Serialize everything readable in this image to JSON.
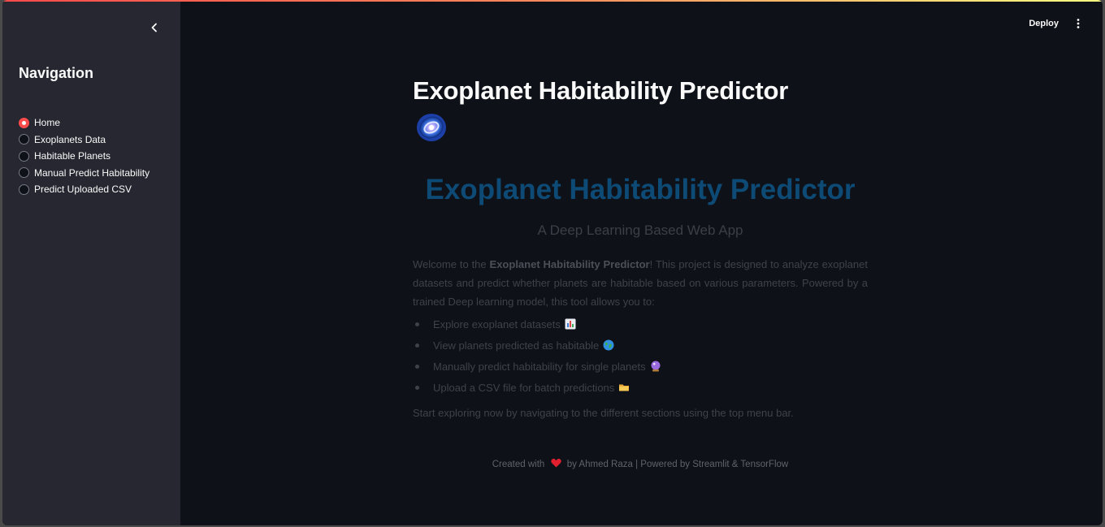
{
  "header": {
    "deploy_label": "Deploy"
  },
  "sidebar": {
    "title": "Navigation",
    "items": [
      {
        "label": "Home",
        "selected": true
      },
      {
        "label": "Exoplanets Data",
        "selected": false
      },
      {
        "label": "Habitable Planets",
        "selected": false
      },
      {
        "label": "Manual Predict Habitability",
        "selected": false
      },
      {
        "label": "Predict Uploaded CSV",
        "selected": false
      }
    ]
  },
  "main": {
    "title": "Exoplanet Habitability Predictor",
    "title_icon": "galaxy-icon",
    "hero_title": "Exoplanet Habitability Predictor",
    "hero_subtitle": "A Deep Learning Based Web App",
    "intro_prefix": "Welcome to the ",
    "intro_bold": "Exoplanet Habitability Predictor",
    "intro_suffix": "! This project is designed to analyze exoplanet datasets and predict whether planets are habitable based on various parameters. Powered by a trained Deep learning model, this tool allows you to:",
    "features": [
      {
        "text": "Explore exoplanet datasets",
        "icon": "bar-chart-icon"
      },
      {
        "text": "View planets predicted as habitable",
        "icon": "globe-icon"
      },
      {
        "text": "Manually predict habitability for single planets",
        "icon": "crystal-ball-icon"
      },
      {
        "text": "Upload a CSV file for batch predictions",
        "icon": "folder-icon"
      }
    ],
    "outro": "Start exploring now by navigating to the different sections using the top menu bar."
  },
  "footer": {
    "prefix": "Created with",
    "suffix": "by Ahmed Raza | Powered by Streamlit & TensorFlow"
  },
  "colors": {
    "accent": "#ff4b4b",
    "hero_title": "#0d4a75",
    "background": "#0e1117",
    "sidebar": "#262730"
  }
}
